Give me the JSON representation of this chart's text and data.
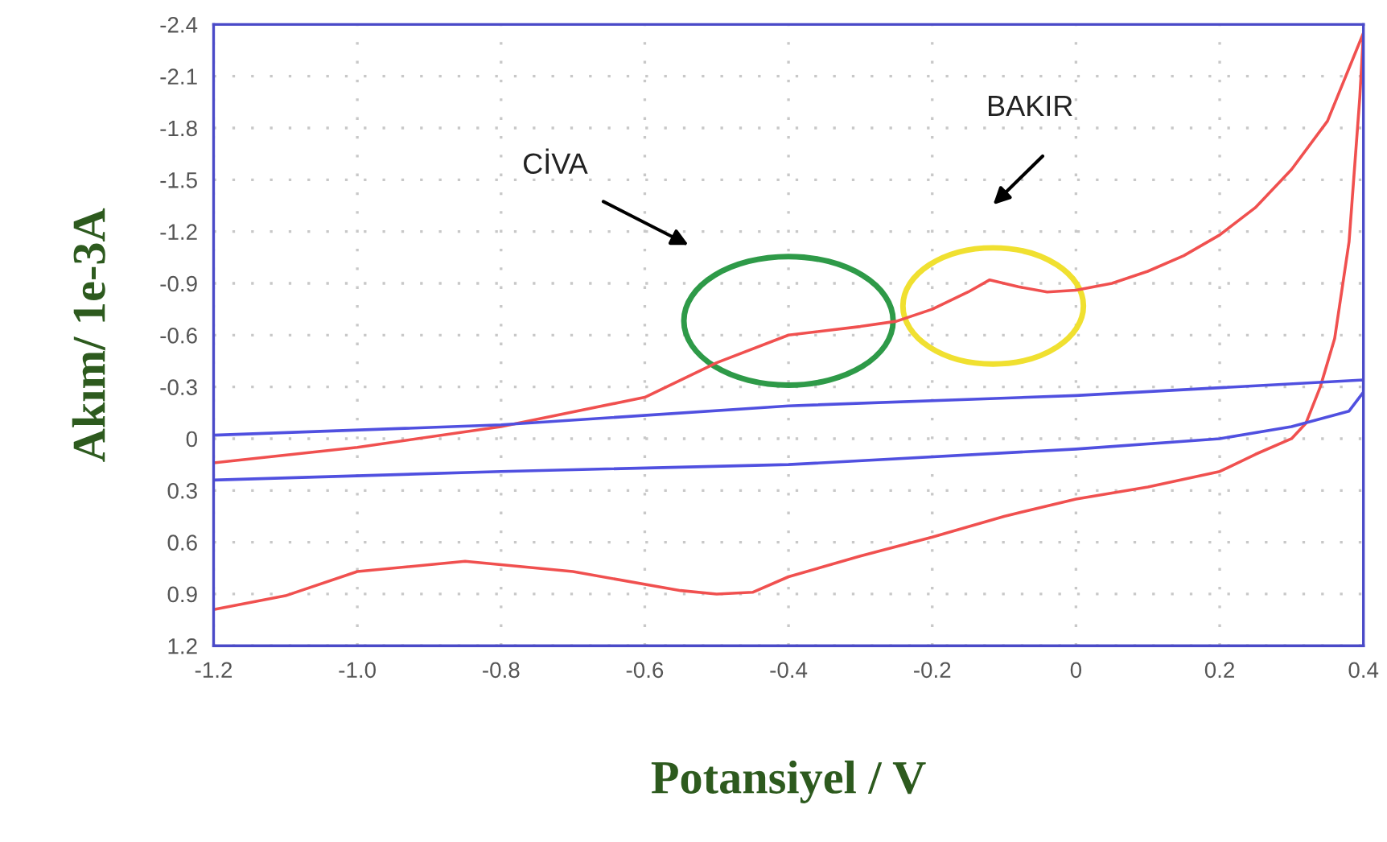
{
  "chart_data": {
    "type": "line",
    "xlabel": "Potansiyel / V",
    "ylabel": "Akım/ 1e-3A",
    "xlim": [
      -1.2,
      0.4
    ],
    "xticks": [
      -1.2,
      {
        "value": -1.0,
        "label": "-1.0"
      },
      -0.8,
      -0.6,
      -0.4,
      -0.2,
      0,
      0.2,
      0.4
    ],
    "ylim": [
      1.2,
      -2.4
    ],
    "yticks": [
      -2.4,
      -2.1,
      -1.8,
      -1.5,
      -1.2,
      -0.9,
      -0.6,
      -0.3,
      0,
      0.3,
      0.6,
      0.9,
      1.2
    ],
    "grid": true,
    "legend": false,
    "marker": "none",
    "line_style": "solid",
    "series": [
      {
        "color": "#f0504f",
        "x": [
          -1.2,
          -1.0,
          -0.8,
          -0.6,
          -0.5,
          -0.4,
          -0.3,
          -0.25,
          -0.2,
          -0.15,
          -0.12,
          -0.08,
          -0.04,
          0.0,
          0.05,
          0.1,
          0.15,
          0.2,
          0.25,
          0.3,
          0.35,
          0.4,
          0.395,
          0.38,
          0.36,
          0.34,
          0.32,
          0.3,
          0.25,
          0.2,
          0.1,
          0.0,
          -0.1,
          -0.2,
          -0.3,
          -0.4,
          -0.45,
          -0.5,
          -0.55,
          -0.7,
          -0.85,
          -1.0,
          -1.1,
          -1.2
        ],
        "values": [
          0.14,
          0.05,
          -0.07,
          -0.24,
          -0.44,
          -0.6,
          -0.65,
          -0.68,
          -0.75,
          -0.85,
          -0.92,
          -0.88,
          -0.85,
          -0.86,
          -0.9,
          -0.97,
          -1.06,
          -1.18,
          -1.34,
          -1.56,
          -1.84,
          -2.35,
          -1.98,
          -1.14,
          -0.58,
          -0.3,
          -0.09,
          0.0,
          0.09,
          0.19,
          0.28,
          0.35,
          0.45,
          0.57,
          0.68,
          0.8,
          0.89,
          0.9,
          0.88,
          0.77,
          0.71,
          0.77,
          0.91,
          0.99
        ]
      },
      {
        "color": "#5050e0",
        "x": [
          -1.2,
          -0.8,
          -0.4,
          0.0,
          0.4,
          0.4,
          0.38,
          0.3,
          0.2,
          0.0,
          -0.4,
          -0.8,
          -1.2
        ],
        "values": [
          -0.02,
          -0.08,
          -0.19,
          -0.25,
          -0.34,
          -0.27,
          -0.16,
          -0.07,
          0.0,
          0.06,
          0.15,
          0.19,
          0.24
        ]
      }
    ],
    "annotations": [
      "CİVA",
      "BAKIR"
    ]
  }
}
